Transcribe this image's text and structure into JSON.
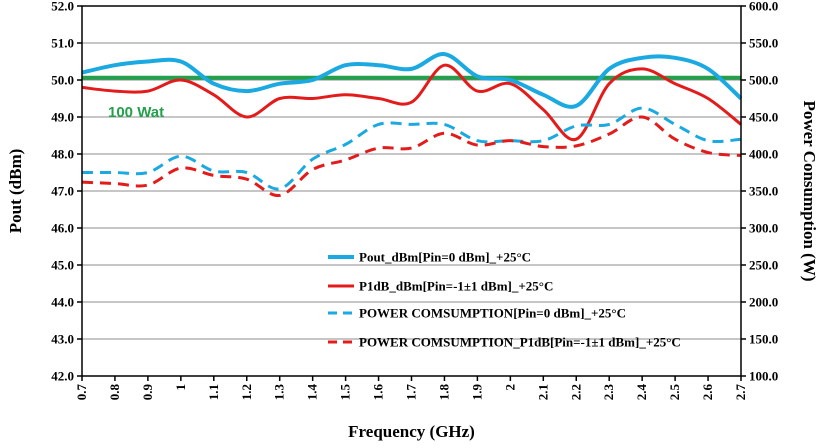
{
  "chart_data": {
    "type": "line",
    "xlabel": "Frequency (GHz)",
    "ylabel_left": "Pout (dBm)",
    "ylabel_right": "Power Consumption (W)",
    "xlim": [
      0.7,
      2.7
    ],
    "ylim_left": [
      42.0,
      52.0
    ],
    "ylim_right": [
      100.0,
      600.0
    ],
    "x_ticks": [
      "0.7",
      "0.8",
      "0.9",
      "1",
      "1.1",
      "1.2",
      "1.3",
      "1.4",
      "1.5",
      "1.6",
      "1.7",
      "1.8",
      "1.9",
      "2",
      "2.1",
      "2.2",
      "2.3",
      "2.4",
      "2.5",
      "2.6",
      "2.7"
    ],
    "y_ticks_left": [
      "42.0",
      "43.0",
      "44.0",
      "45.0",
      "46.0",
      "47.0",
      "48.0",
      "49.0",
      "50.0",
      "51.0",
      "52.0"
    ],
    "y_ticks_right": [
      "100.0",
      "150.0",
      "200.0",
      "250.0",
      "300.0",
      "350.0",
      "400.0",
      "450.0",
      "500.0",
      "550.0",
      "600.0"
    ],
    "grid": "horizontal",
    "legend_position": "center-right",
    "reference_line": {
      "y_right": 503,
      "label": "100 Wat",
      "color": "#22a04b"
    },
    "series": [
      {
        "name": "Pout_dBm[Pin=0 dBm]_+25°C",
        "axis": "left",
        "style": "solid",
        "color": "#1aa9e0",
        "x": [
          0.7,
          0.8,
          0.9,
          1.0,
          1.1,
          1.2,
          1.3,
          1.4,
          1.5,
          1.6,
          1.7,
          1.8,
          1.9,
          2.0,
          2.1,
          2.2,
          2.3,
          2.4,
          2.5,
          2.6,
          2.7
        ],
        "y": [
          50.2,
          50.4,
          50.5,
          50.5,
          49.9,
          49.7,
          49.9,
          50.0,
          50.4,
          50.4,
          50.3,
          50.7,
          50.1,
          50.0,
          49.6,
          49.3,
          50.3,
          50.6,
          50.6,
          50.3,
          49.5
        ]
      },
      {
        "name": "P1dB_dBm[Pin=-1±1 dBm]_+25°C",
        "axis": "left",
        "style": "solid",
        "color": "#e31b1b",
        "x": [
          0.7,
          0.8,
          0.9,
          1.0,
          1.1,
          1.2,
          1.3,
          1.4,
          1.5,
          1.6,
          1.7,
          1.8,
          1.9,
          2.0,
          2.1,
          2.2,
          2.3,
          2.4,
          2.5,
          2.6,
          2.7
        ],
        "y": [
          49.8,
          49.7,
          49.7,
          50.0,
          49.6,
          49.0,
          49.5,
          49.5,
          49.6,
          49.5,
          49.4,
          50.4,
          49.7,
          49.9,
          49.2,
          48.4,
          49.9,
          50.3,
          49.9,
          49.5,
          48.8
        ]
      },
      {
        "name": "POWER COMSUMPTION[Pin=0 dBm]_+25°C",
        "axis": "right",
        "style": "dashed",
        "color": "#1aa9e0",
        "x": [
          0.7,
          0.8,
          0.9,
          1.0,
          1.1,
          1.2,
          1.3,
          1.4,
          1.5,
          1.6,
          1.7,
          1.8,
          1.9,
          2.0,
          2.1,
          2.2,
          2.3,
          2.4,
          2.5,
          2.6,
          2.7
        ],
        "y": [
          375,
          375,
          375,
          397,
          377,
          375,
          353,
          393,
          413,
          440,
          440,
          440,
          418,
          418,
          418,
          438,
          440,
          462,
          440,
          418,
          420
        ]
      },
      {
        "name": "POWER COMSUMPTION_P1dB[Pin=-1±1 dBm]_+25°C",
        "axis": "right",
        "style": "dashed",
        "color": "#e31b1b",
        "x": [
          0.7,
          0.8,
          0.9,
          1.0,
          1.1,
          1.2,
          1.3,
          1.4,
          1.5,
          1.6,
          1.7,
          1.8,
          1.9,
          2.0,
          2.1,
          2.2,
          2.3,
          2.4,
          2.5,
          2.6,
          2.7
        ],
        "y": [
          362,
          360,
          358,
          381,
          371,
          366,
          344,
          379,
          392,
          408,
          408,
          428,
          412,
          418,
          410,
          411,
          427,
          450,
          420,
          402,
          398
        ]
      }
    ]
  }
}
